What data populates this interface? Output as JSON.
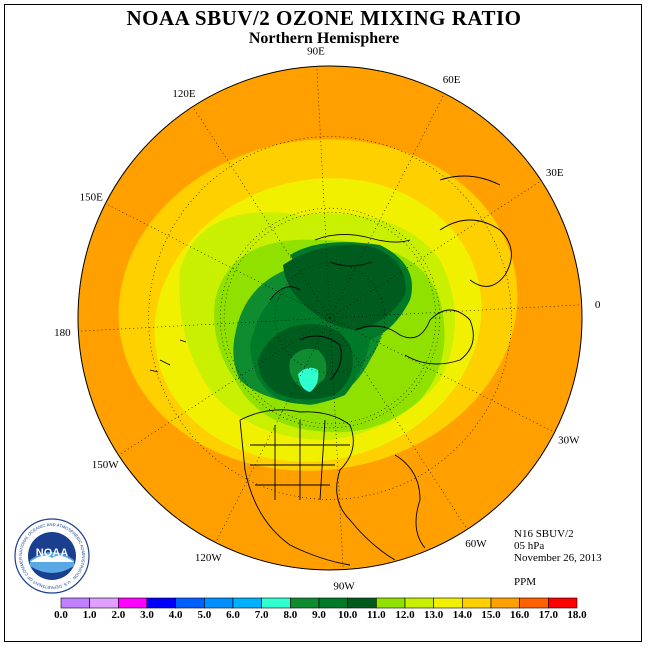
{
  "title": "NOAA SBUV/2 OZONE MIXING RATIO",
  "subtitle": "Northern Hemisphere",
  "info": {
    "instrument": "N16 SBUV/2",
    "level": "05 hPa",
    "date": "November 26, 2013",
    "units": "PPM"
  },
  "longitude_labels": [
    {
      "lon": 90,
      "text": "90E"
    },
    {
      "lon": 60,
      "text": "60E"
    },
    {
      "lon": 30,
      "text": "30E"
    },
    {
      "lon": 0,
      "text": "0"
    },
    {
      "lon": -30,
      "text": "30W"
    },
    {
      "lon": -60,
      "text": "60W"
    },
    {
      "lon": -90,
      "text": "90W"
    },
    {
      "lon": -120,
      "text": "120W"
    },
    {
      "lon": -150,
      "text": "150W"
    },
    {
      "lon": 180,
      "text": "180"
    },
    {
      "lon": 150,
      "text": "150E"
    },
    {
      "lon": 120,
      "text": "120E"
    }
  ],
  "colorbar": {
    "labels": [
      "0.0",
      "1.0",
      "2.0",
      "3.0",
      "4.0",
      "5.0",
      "6.0",
      "7.0",
      "8.0",
      "9.0",
      "10.0",
      "11.0",
      "12.0",
      "13.0",
      "14.0",
      "15.0",
      "16.0",
      "17.0",
      "18.0"
    ],
    "colors": [
      "#c080ff",
      "#e0a0ff",
      "#ff00ff",
      "#0000ff",
      "#0060ff",
      "#0090ff",
      "#00b0ff",
      "#30ffd0",
      "#108c30",
      "#007a28",
      "#005c1e",
      "#90e000",
      "#c8f000",
      "#f0f000",
      "#ffd000",
      "#ffa000",
      "#ff6000",
      "#ff0000",
      "#8b5a2b"
    ]
  },
  "logo_text": "NOAA",
  "logo_ring_text": "NATIONAL OCEANIC AND ATMOSPHERIC ADMINISTRATION · U.S. DEPARTMENT OF COMMERCE"
}
